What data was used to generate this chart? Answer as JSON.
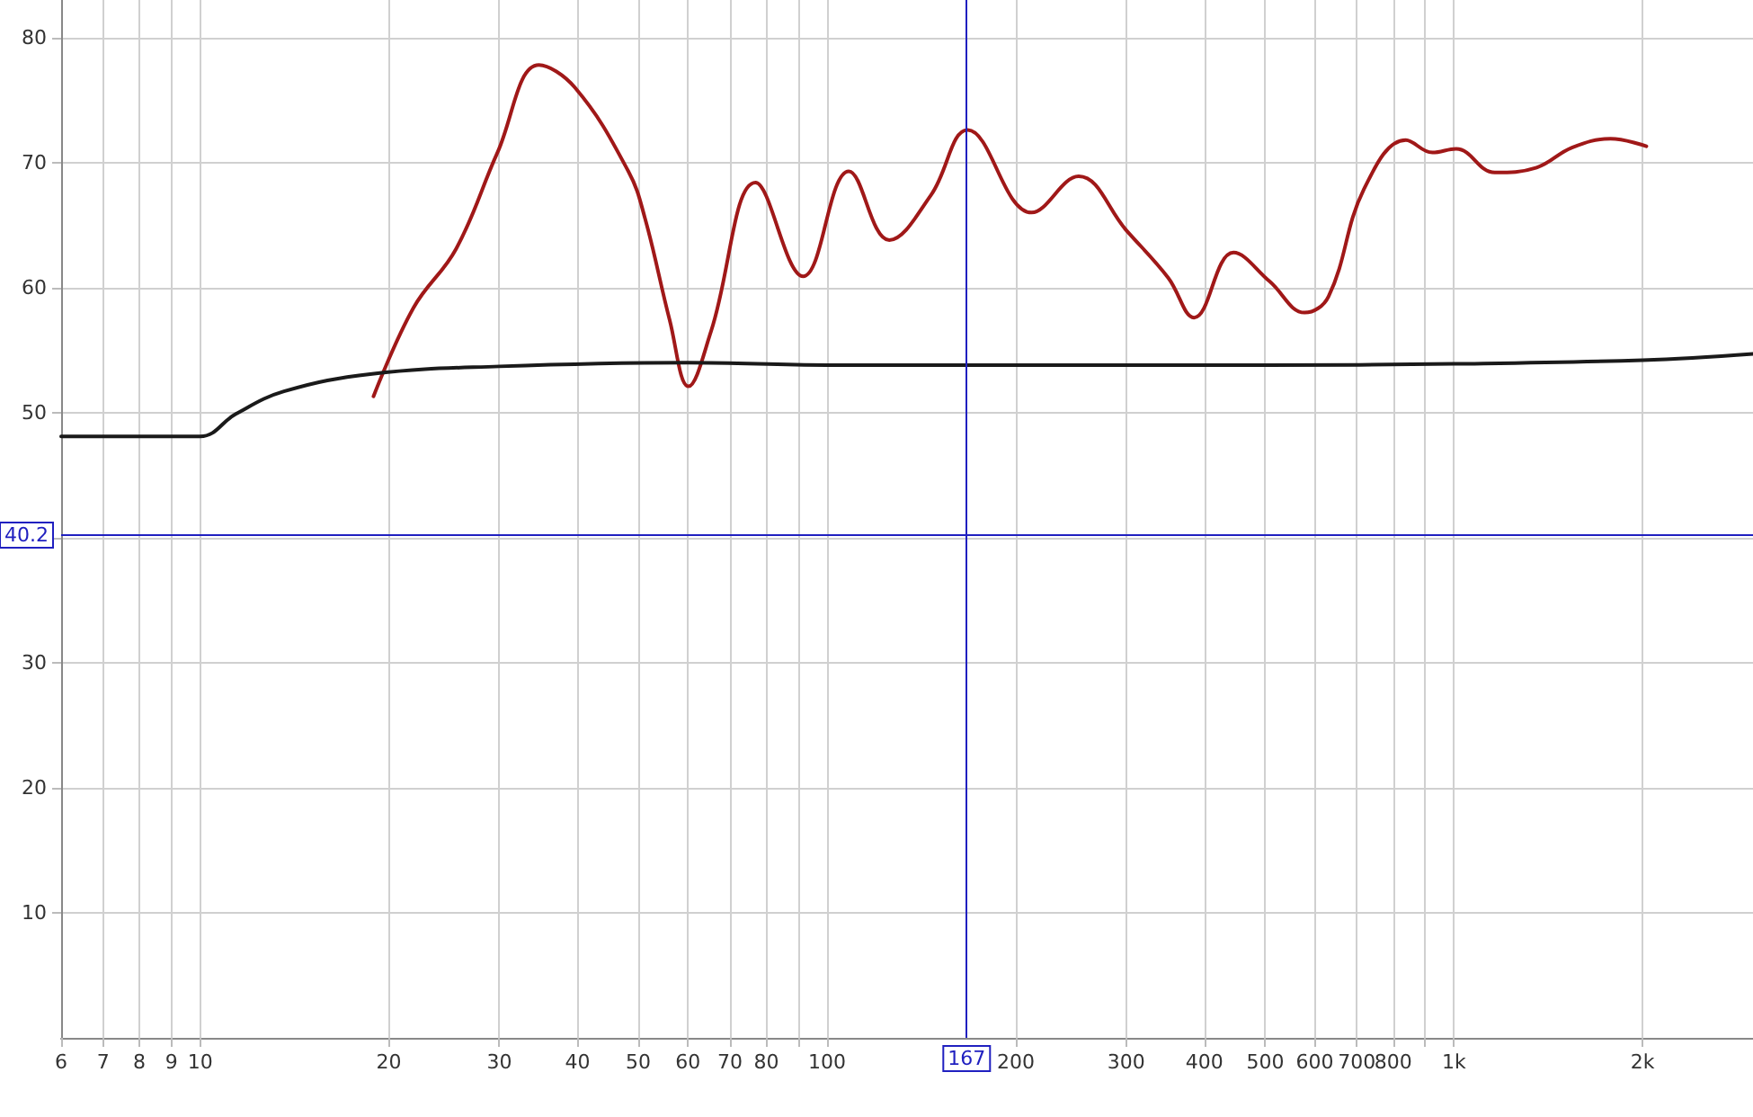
{
  "chart_data": {
    "type": "line",
    "log": "x",
    "grid": true,
    "marker": "none",
    "line_style": "solid",
    "xlim": [
      6,
      3000
    ],
    "ylim": [
      0,
      83
    ],
    "xticks": [
      6,
      7,
      8,
      9,
      10,
      20,
      30,
      40,
      50,
      60,
      70,
      80,
      {
        "value": 90,
        "label": null
      },
      100,
      200,
      300,
      400,
      500,
      600,
      700,
      800,
      {
        "value": 900,
        "label": null
      },
      {
        "value": 1000,
        "label": "1k"
      },
      {
        "value": 2000,
        "label": "2k"
      }
    ],
    "yticks": [
      10,
      20,
      30,
      {
        "value": 40,
        "label": null
      },
      50,
      60,
      70,
      80
    ],
    "series": [
      {
        "color": "#a01818",
        "x": [
          18.9,
          21.9,
          25.6,
          29.8,
          34.7,
          39.6,
          48.2,
          51.2,
          56.1,
          60.1,
          65.3,
          76.9,
          91.6,
          108.3,
          125.7,
          146.5,
          167.6,
          212,
          252,
          300,
          350,
          385,
          445,
          508,
          578,
          631,
          719,
          838,
          924,
          1008,
          1162,
          1355,
          1543,
          1778,
          2028
        ],
        "values": [
          51.3,
          58.4,
          63.1,
          70.8,
          77.8,
          76.0,
          69.3,
          65.6,
          57.4,
          52.1,
          56.5,
          68.4,
          60.9,
          69.3,
          63.8,
          67.4,
          72.6,
          66.0,
          68.9,
          64.6,
          60.8,
          57.6,
          62.8,
          60.5,
          58.0,
          59.3,
          67.9,
          71.8,
          70.8,
          71.1,
          69.2,
          69.6,
          71.2,
          71.9,
          71.3
        ]
      },
      {
        "color": "#1a1a1a",
        "x": [
          6,
          10,
          11.4,
          13.6,
          18.8,
          30,
          60,
          100,
          200,
          500,
          1000,
          2000,
          3000
        ],
        "values": [
          48.1,
          48.1,
          49.9,
          51.7,
          53.1,
          53.7,
          54.0,
          53.8,
          53.8,
          53.8,
          53.9,
          54.2,
          54.7
        ]
      }
    ],
    "ref_lines": [
      {
        "axis": "y",
        "value": 40.2,
        "label": "40.2",
        "color": "#2020c0"
      },
      {
        "axis": "x",
        "value": 167,
        "label": "167",
        "color": "#2020c0"
      }
    ]
  }
}
